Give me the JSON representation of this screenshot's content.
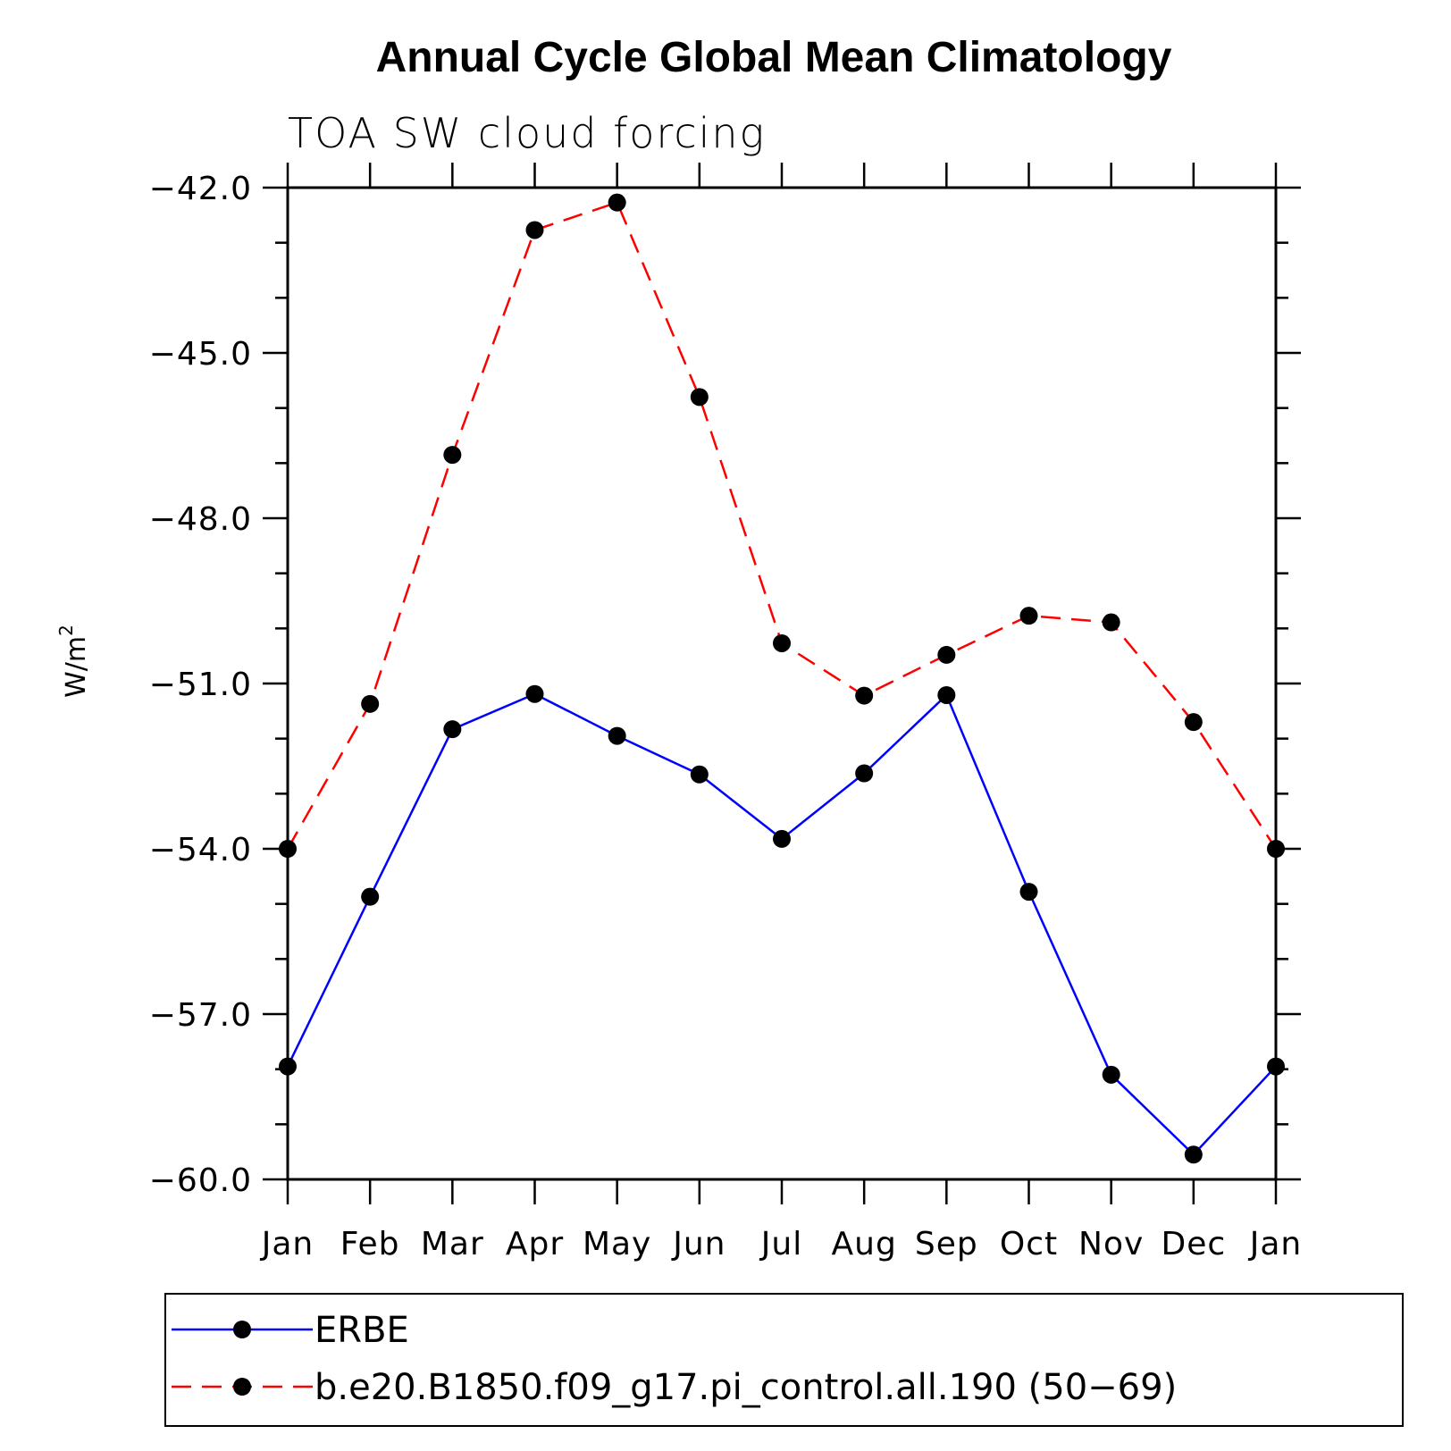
{
  "chart_data": {
    "type": "line",
    "title": "Annual Cycle Global Mean Climatology",
    "subtitle": "TOA SW cloud forcing",
    "xlabel": "",
    "ylabel": "W/m",
    "ylabel_superscript": "2",
    "categories": [
      "Jan",
      "Feb",
      "Mar",
      "Apr",
      "May",
      "Jun",
      "Jul",
      "Aug",
      "Sep",
      "Oct",
      "Nov",
      "Dec",
      "Jan"
    ],
    "ylim": [
      -60.0,
      -42.0
    ],
    "yticks": [
      -42.0,
      -45.0,
      -48.0,
      -51.0,
      -54.0,
      -57.0,
      -60.0
    ],
    "ytick_labels": [
      "−42.0",
      "−45.0",
      "−48.0",
      "−51.0",
      "−54.0",
      "−57.0",
      "−60.0"
    ],
    "series": [
      {
        "name": "ERBE",
        "color": "#0000ff",
        "dash": "solid",
        "values": [
          -57.95,
          -54.87,
          -51.83,
          -51.19,
          -51.95,
          -52.65,
          -53.82,
          -52.63,
          -51.21,
          -54.78,
          -58.1,
          -59.55,
          -57.95
        ]
      },
      {
        "name": "b.e20.B1850.f09_g17.pi_control.all.190 (50−69)",
        "color": "#ff0000",
        "dash": "dashed",
        "values": [
          -54.0,
          -51.37,
          -46.85,
          -42.77,
          -42.27,
          -45.8,
          -50.27,
          -51.22,
          -50.48,
          -49.77,
          -49.89,
          -51.7,
          -54.0
        ]
      }
    ],
    "legend_position": "bottom"
  }
}
